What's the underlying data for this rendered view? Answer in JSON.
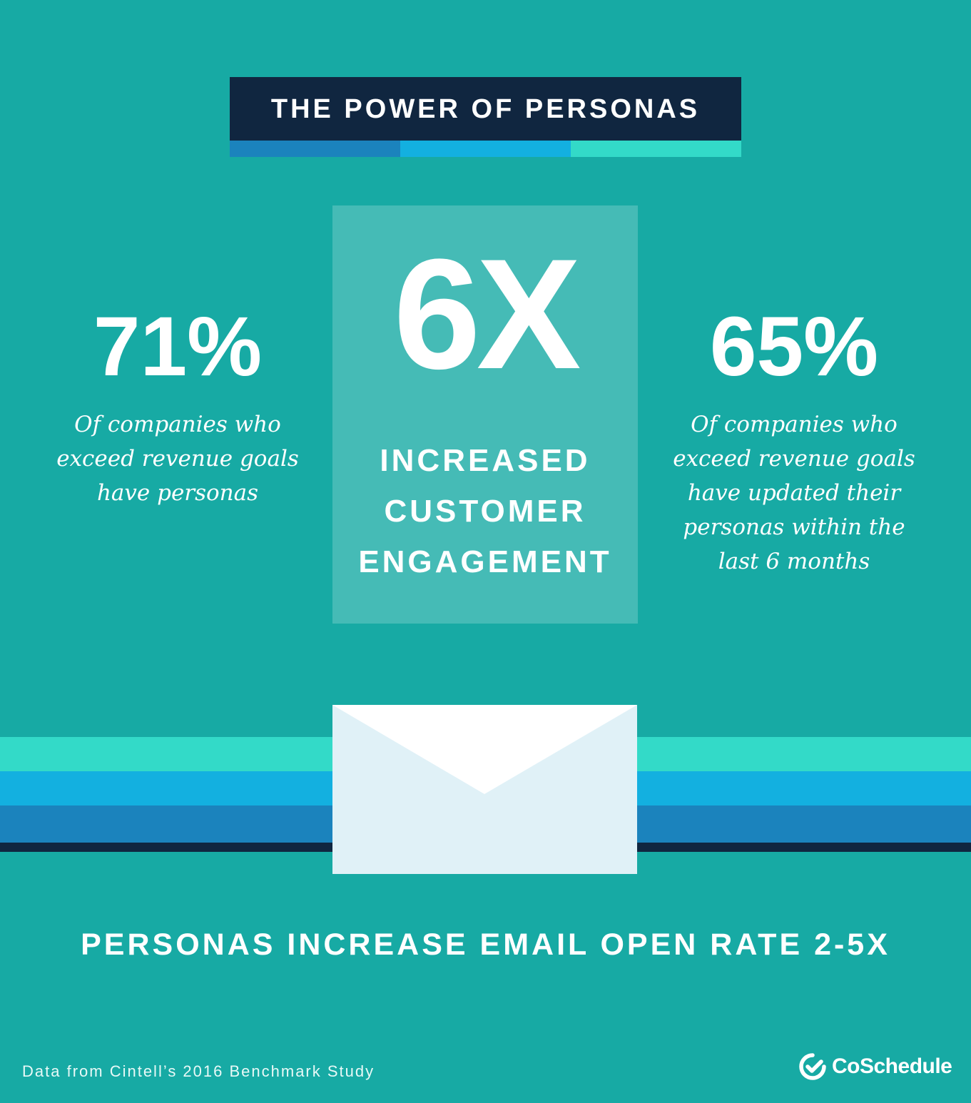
{
  "title": "THE POWER OF PERSONAS",
  "center": {
    "stat": "6X",
    "lines": [
      "INCREASED",
      "CUSTOMER",
      "ENGAGEMENT"
    ]
  },
  "left": {
    "stat": "71%",
    "lines": [
      "Of companies who",
      "exceed revenue goals",
      "have personas"
    ]
  },
  "right": {
    "stat": "65%",
    "lines": [
      "Of companies who",
      "exceed revenue goals",
      "have updated their",
      "personas within the",
      "last 6 months"
    ]
  },
  "headline": "PERSONAS INCREASE EMAIL OPEN RATE 2-5X",
  "footer": {
    "source": "Data from Cintell’s 2016 Benchmark Study",
    "brand": "CoSchedule"
  },
  "colors": {
    "background": "#17aaa4",
    "navy": "#102640",
    "blue": "#1b83bd",
    "sky": "#13b0e0",
    "mint": "#33dac8",
    "envelope": "#e0f1f7"
  },
  "icons": {
    "email": "envelope-icon",
    "brand": "checkmark-circle-icon"
  }
}
